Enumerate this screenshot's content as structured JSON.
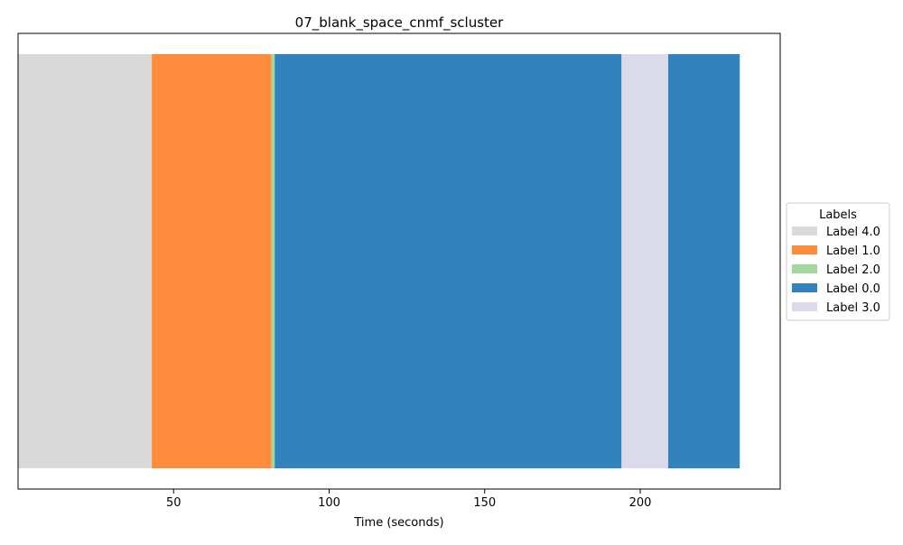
{
  "chart_data": {
    "type": "bar",
    "orientation": "horizontal-timeline",
    "title": "07_blank_space_cnmf_scluster",
    "xlabel": "Time (seconds)",
    "ylabel": "",
    "xlim": [
      0,
      245
    ],
    "xticks": [
      50,
      100,
      150,
      200
    ],
    "xtick_labels": [
      "50",
      "100",
      "150",
      "200"
    ],
    "grid": false,
    "legend": {
      "title": "Labels",
      "placement": "center-right-outside"
    },
    "segments": [
      {
        "label": "Label 4.0",
        "start": 0,
        "end": 43,
        "color": "#d9d9d9"
      },
      {
        "label": "Label 1.0",
        "start": 43,
        "end": 81.5,
        "color": "#fd8d3c"
      },
      {
        "label": "Label 2.0",
        "start": 81.5,
        "end": 82.5,
        "color": "#a1d99b"
      },
      {
        "label": "Label 0.0",
        "start": 82.5,
        "end": 194,
        "color": "#3182bd"
      },
      {
        "label": "Label 3.0",
        "start": 194,
        "end": 209,
        "color": "#dadaeb"
      },
      {
        "label": "Label 0.0",
        "start": 209,
        "end": 232,
        "color": "#3182bd"
      }
    ],
    "legend_entries": [
      {
        "label": "Label 4.0",
        "color": "#d9d9d9"
      },
      {
        "label": "Label 1.0",
        "color": "#fd8d3c"
      },
      {
        "label": "Label 2.0",
        "color": "#a1d99b"
      },
      {
        "label": "Label 0.0",
        "color": "#3182bd"
      },
      {
        "label": "Label 3.0",
        "color": "#dadaeb"
      }
    ]
  }
}
